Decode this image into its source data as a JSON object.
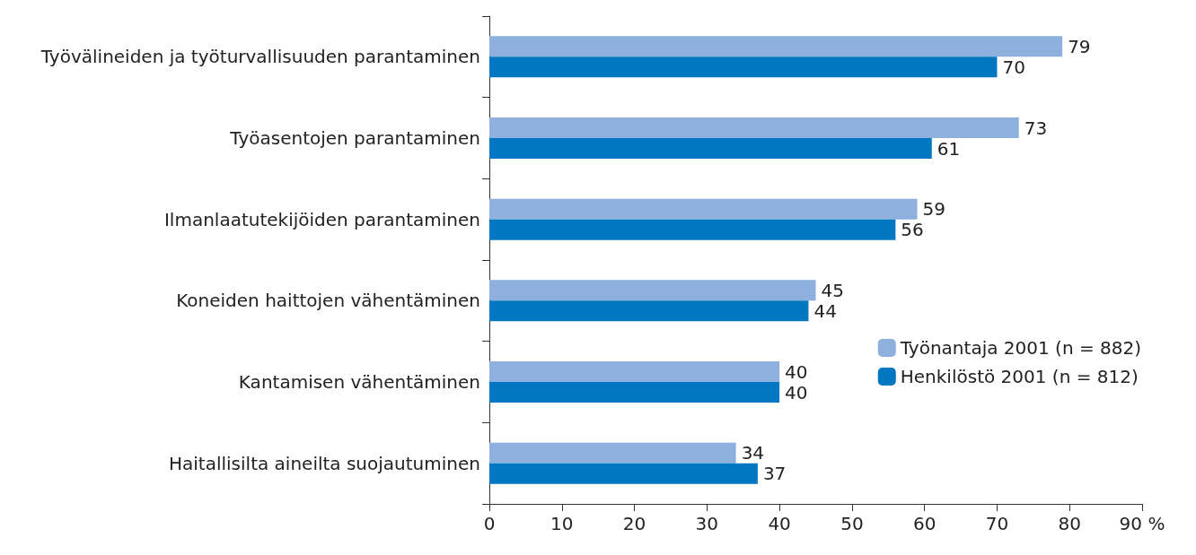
{
  "chart_data": {
    "type": "bar",
    "orientation": "horizontal",
    "categories": [
      "Työvälineiden ja työturvallisuuden parantaminen",
      "Työasentojen parantaminen",
      "Ilmanlaatutekijöiden parantaminen",
      "Koneiden haittojen vähentäminen",
      "Kantamisen vähentäminen",
      "Haitallisilta aineilta suojautuminen"
    ],
    "series": [
      {
        "name": "Työnantaja 2001 (n = 882)",
        "color": "#8db0de",
        "values": [
          79,
          73,
          59,
          45,
          40,
          34
        ]
      },
      {
        "name": "Henkilöstö 2001 (n = 812)",
        "color": "#0077c0",
        "values": [
          70,
          61,
          56,
          44,
          40,
          37
        ]
      }
    ],
    "xlim": [
      0,
      90
    ],
    "xticks": [
      0,
      10,
      20,
      30,
      40,
      50,
      60,
      70,
      80,
      {
        "value": 90,
        "label": "90 %"
      }
    ],
    "grid": false,
    "legend": "right",
    "data_labels": true
  }
}
